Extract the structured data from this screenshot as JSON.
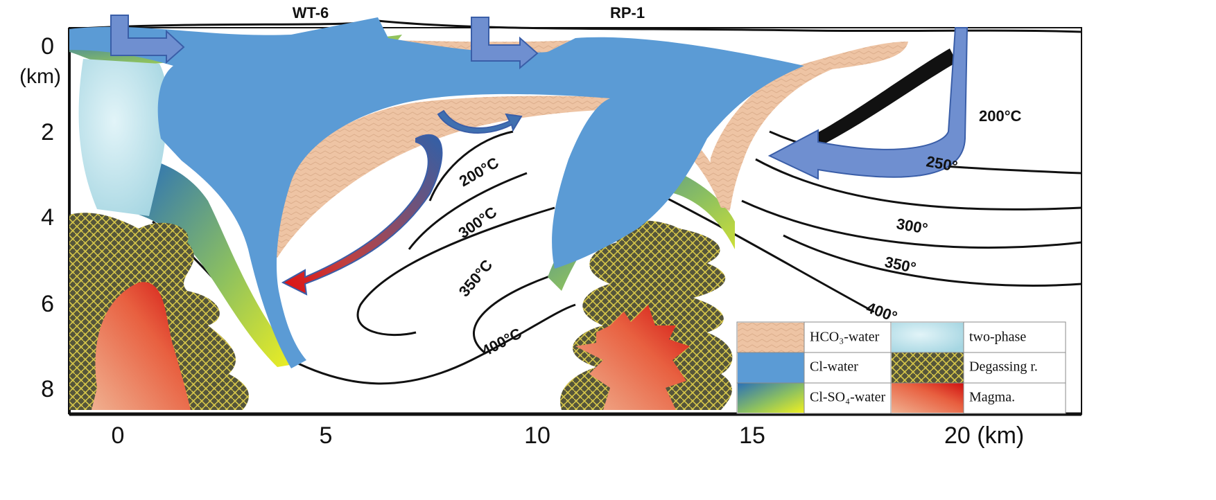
{
  "wells": [
    "WT-6",
    "RP-1"
  ],
  "axes": {
    "y_ticks": [
      "0",
      "2",
      "4",
      "6",
      "8"
    ],
    "y_unit": "(km)",
    "x_ticks": [
      "0",
      "5",
      "10",
      "15",
      "20 (km)"
    ]
  },
  "isotherms": {
    "left": [
      "200°C",
      "300°C",
      "350°C",
      "400°C"
    ],
    "right": [
      "200°C",
      "250°",
      "300°",
      "350°",
      "400°"
    ]
  },
  "legend": [
    "HCO₃-water",
    "two-phase",
    "Cl-water",
    "Degassing r.",
    "Cl-SO₄-water",
    "Magma."
  ]
}
